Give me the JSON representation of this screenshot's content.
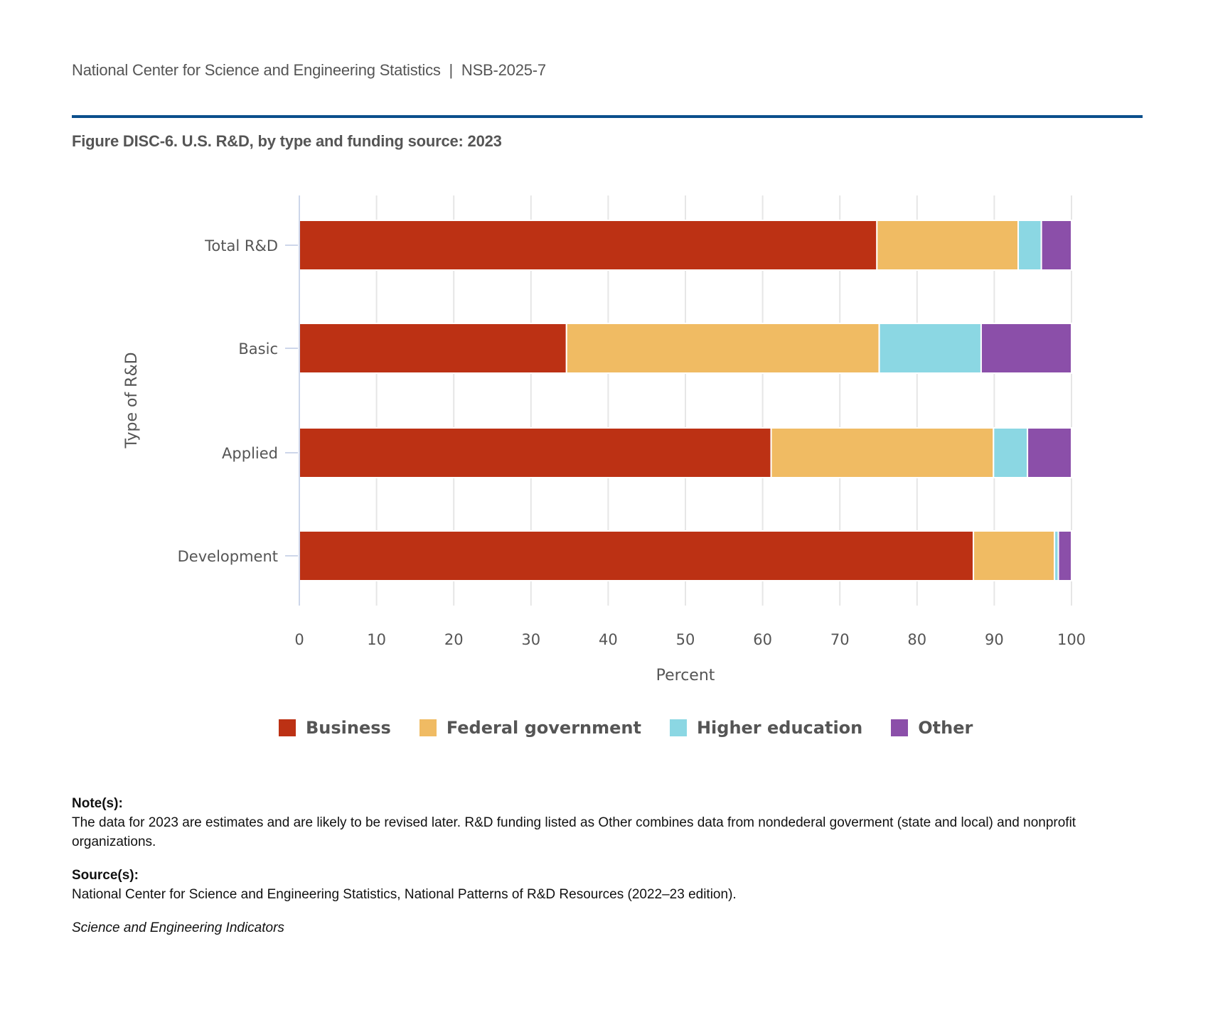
{
  "header": {
    "organization": "National Center for Science and Engineering Statistics  |  NSB-2025-7",
    "figure_title": "Figure DISC-6. U.S. R&D, by type and funding source: 2023"
  },
  "chart_data": {
    "type": "bar",
    "orientation": "horizontal",
    "stacked": true,
    "title": "Figure DISC-6. U.S. R&D, by type and funding source: 2023",
    "xlabel": "Percent",
    "ylabel": "Type of R&D",
    "xlim": [
      0,
      100
    ],
    "xticks": [
      0,
      10,
      20,
      30,
      40,
      50,
      60,
      70,
      80,
      90,
      100
    ],
    "grid": true,
    "legend_position": "bottom",
    "categories": [
      "Total R&D",
      "Basic",
      "Applied",
      "Development"
    ],
    "series": [
      {
        "name": "Business",
        "color": "#bc3114",
        "values": [
          74.8,
          34.6,
          61.1,
          87.3
        ]
      },
      {
        "name": "Federal government",
        "color": "#f0bb63",
        "values": [
          18.3,
          40.5,
          28.8,
          10.5
        ]
      },
      {
        "name": "Higher education",
        "color": "#8bd7e3",
        "values": [
          3.0,
          13.2,
          4.4,
          0.5
        ]
      },
      {
        "name": "Other",
        "color": "#8b4fa9",
        "values": [
          3.9,
          11.7,
          5.7,
          1.7
        ]
      }
    ]
  },
  "notes": {
    "note_heading": "Note(s):",
    "note_text": "The data for 2023 are estimates and are likely to be revised later. R&D funding listed as Other combines data from nondederal goverment (state and local) and nonprofit organizations.",
    "source_heading": "Source(s):",
    "source_text": "National Center for Science and Engineering Statistics, National Patterns of R&D Resources (2022–23 edition).",
    "publication": "Science and Engineering Indicators"
  }
}
